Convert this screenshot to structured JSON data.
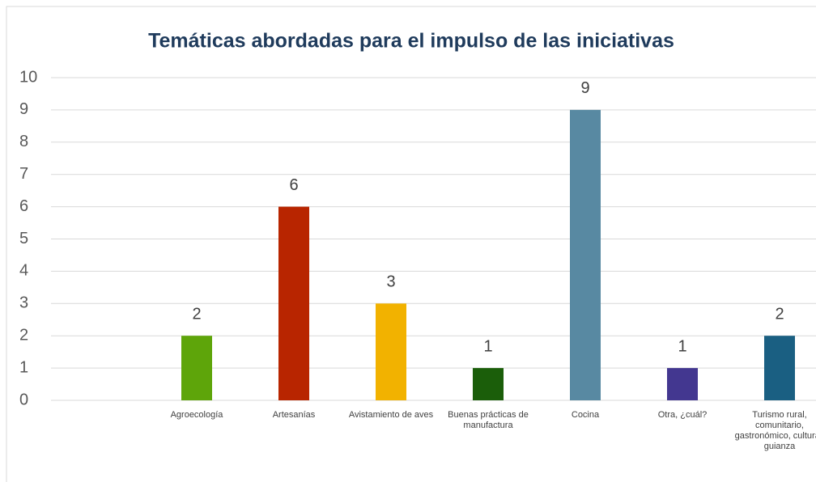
{
  "chart_data": {
    "type": "bar",
    "title": "Temáticas abordadas para el impulso de las iniciativas",
    "categories": [
      null,
      "Agroecología",
      "Artesanías",
      "Avistamiento de aves",
      "Buenas prácticas de manufactura",
      "Cocina",
      "Otra, ¿cuál?",
      "Turismo rural, comunitario, gastronómico, cultural, guianza"
    ],
    "values": [
      null,
      2,
      6,
      3,
      1,
      9,
      1,
      2
    ],
    "colors": [
      null,
      "#5ea50a",
      "#b82500",
      "#f2b200",
      "#1b5e0a",
      "#5889a2",
      "#433790",
      "#1a5f82"
    ],
    "ylim": [
      0,
      10
    ],
    "yticks": [
      0,
      1,
      2,
      3,
      4,
      5,
      6,
      7,
      8,
      9,
      10
    ],
    "grid": true
  }
}
